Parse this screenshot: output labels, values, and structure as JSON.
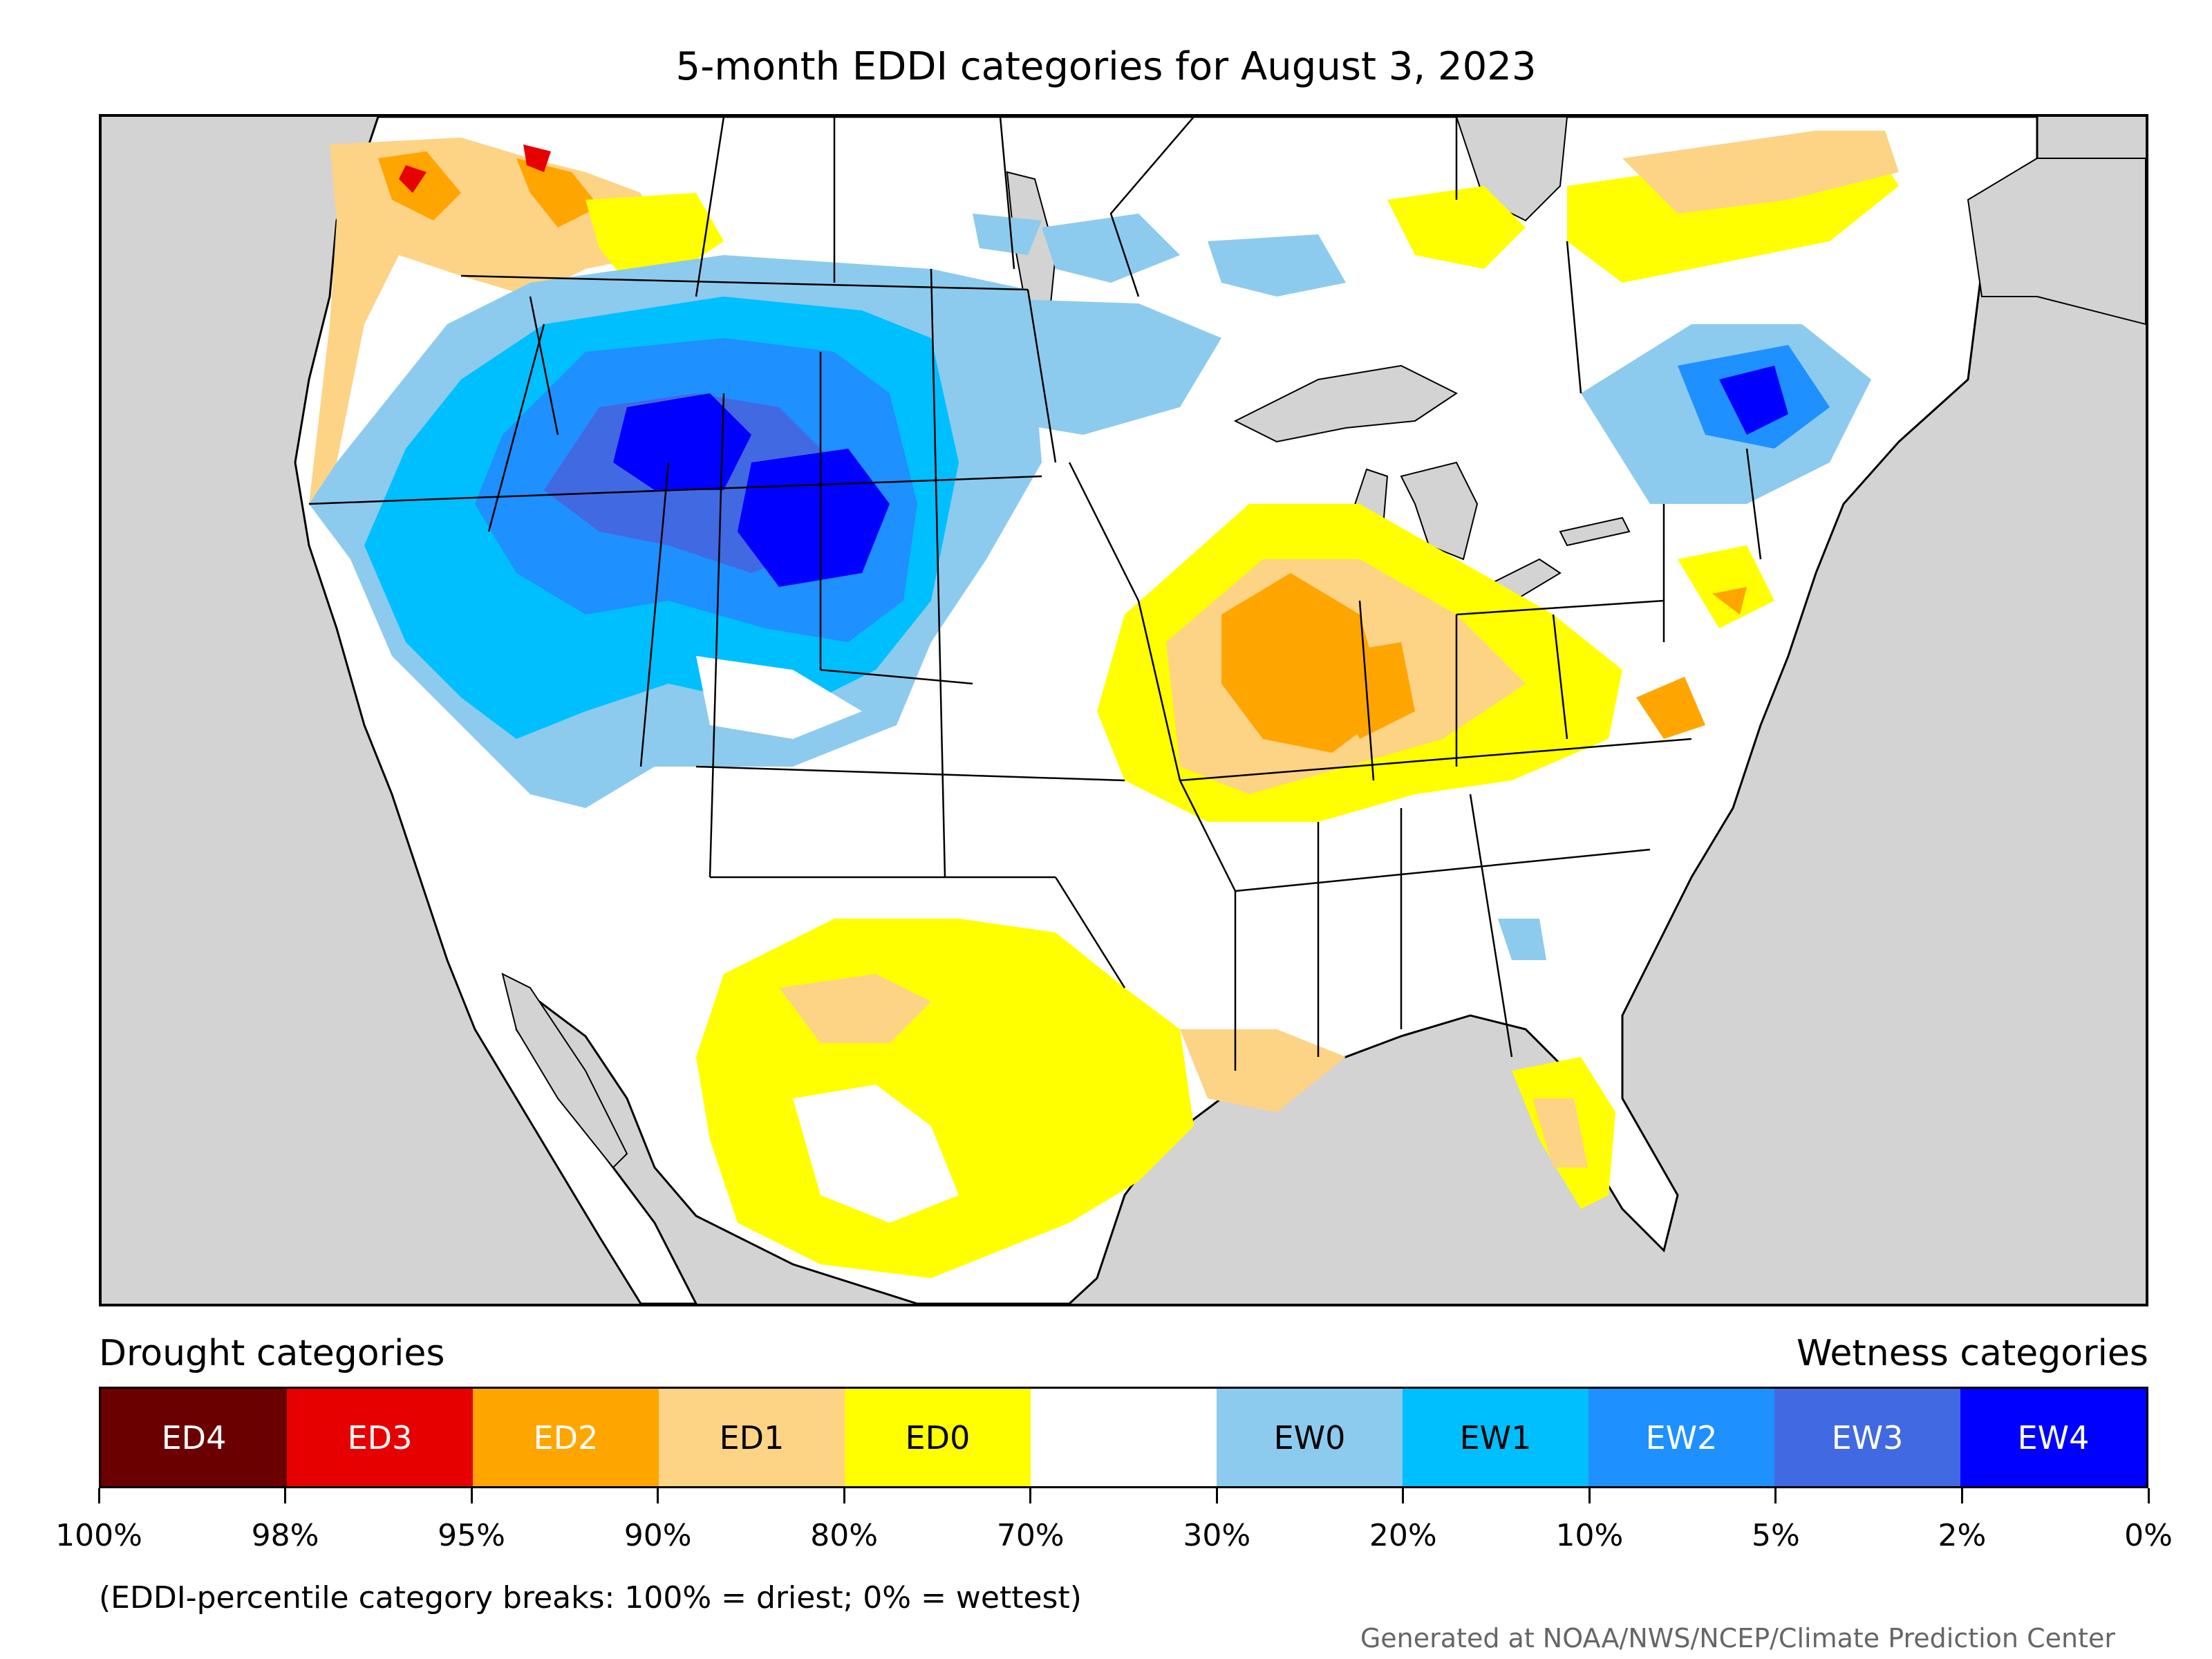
{
  "title": "5-month EDDI categories for August 3, 2023",
  "legend": {
    "drought_heading": "Drought categories",
    "wetness_heading": "Wetness categories",
    "categories": [
      {
        "label": "ED4",
        "color": "#6b0000",
        "text_color": "#ffffff"
      },
      {
        "label": "ED3",
        "color": "#e60000",
        "text_color": "#ffffff"
      },
      {
        "label": "ED2",
        "color": "#ffa500",
        "text_color": "#ffffff"
      },
      {
        "label": "ED1",
        "color": "#fdd386",
        "text_color": "#000000"
      },
      {
        "label": "ED0",
        "color": "#ffff00",
        "text_color": "#000000"
      },
      {
        "label": "",
        "color": "#ffffff",
        "text_color": "#000000"
      },
      {
        "label": "EW0",
        "color": "#8ccbee",
        "text_color": "#000000"
      },
      {
        "label": "EW1",
        "color": "#00bfff",
        "text_color": "#000000"
      },
      {
        "label": "EW2",
        "color": "#1e90ff",
        "text_color": "#ffffff"
      },
      {
        "label": "EW3",
        "color": "#4169e1",
        "text_color": "#ffffff"
      },
      {
        "label": "EW4",
        "color": "#0000ff",
        "text_color": "#ffffff"
      }
    ],
    "ticks": [
      "100%",
      "98%",
      "95%",
      "90%",
      "80%",
      "70%",
      "30%",
      "20%",
      "10%",
      "5%",
      "2%",
      "0%"
    ]
  },
  "footnote": "(EDDI-percentile category breaks: 100% = driest; 0% = wettest)",
  "credit": "Generated at NOAA/NWS/NCEP/Climate Prediction Center",
  "map": {
    "background_color": "#d3d3d3",
    "regions": [
      {
        "name": "Northern Rockies / Great Basin",
        "category": "EW4"
      },
      {
        "name": "Wyoming",
        "category": "EW4"
      },
      {
        "name": "Nevada / Utah",
        "category": "EW2"
      },
      {
        "name": "California",
        "category": "EW1"
      },
      {
        "name": "Colorado",
        "category": "EW2"
      },
      {
        "name": "Dakotas",
        "category": "EW0"
      },
      {
        "name": "Pacific Northwest coast",
        "category": "ED1"
      },
      {
        "name": "British Columbia / Alberta",
        "category": "ED2"
      },
      {
        "name": "Missouri / Illinois",
        "category": "ED2"
      },
      {
        "name": "Midwest",
        "category": "ED1"
      },
      {
        "name": "Ohio Valley",
        "category": "ED0"
      },
      {
        "name": "Texas",
        "category": "ED0"
      },
      {
        "name": "Florida",
        "category": "ED0"
      },
      {
        "name": "Quebec / Maine",
        "category": "EW4"
      },
      {
        "name": "Ontario / Quebec north",
        "category": "ED0"
      }
    ]
  }
}
